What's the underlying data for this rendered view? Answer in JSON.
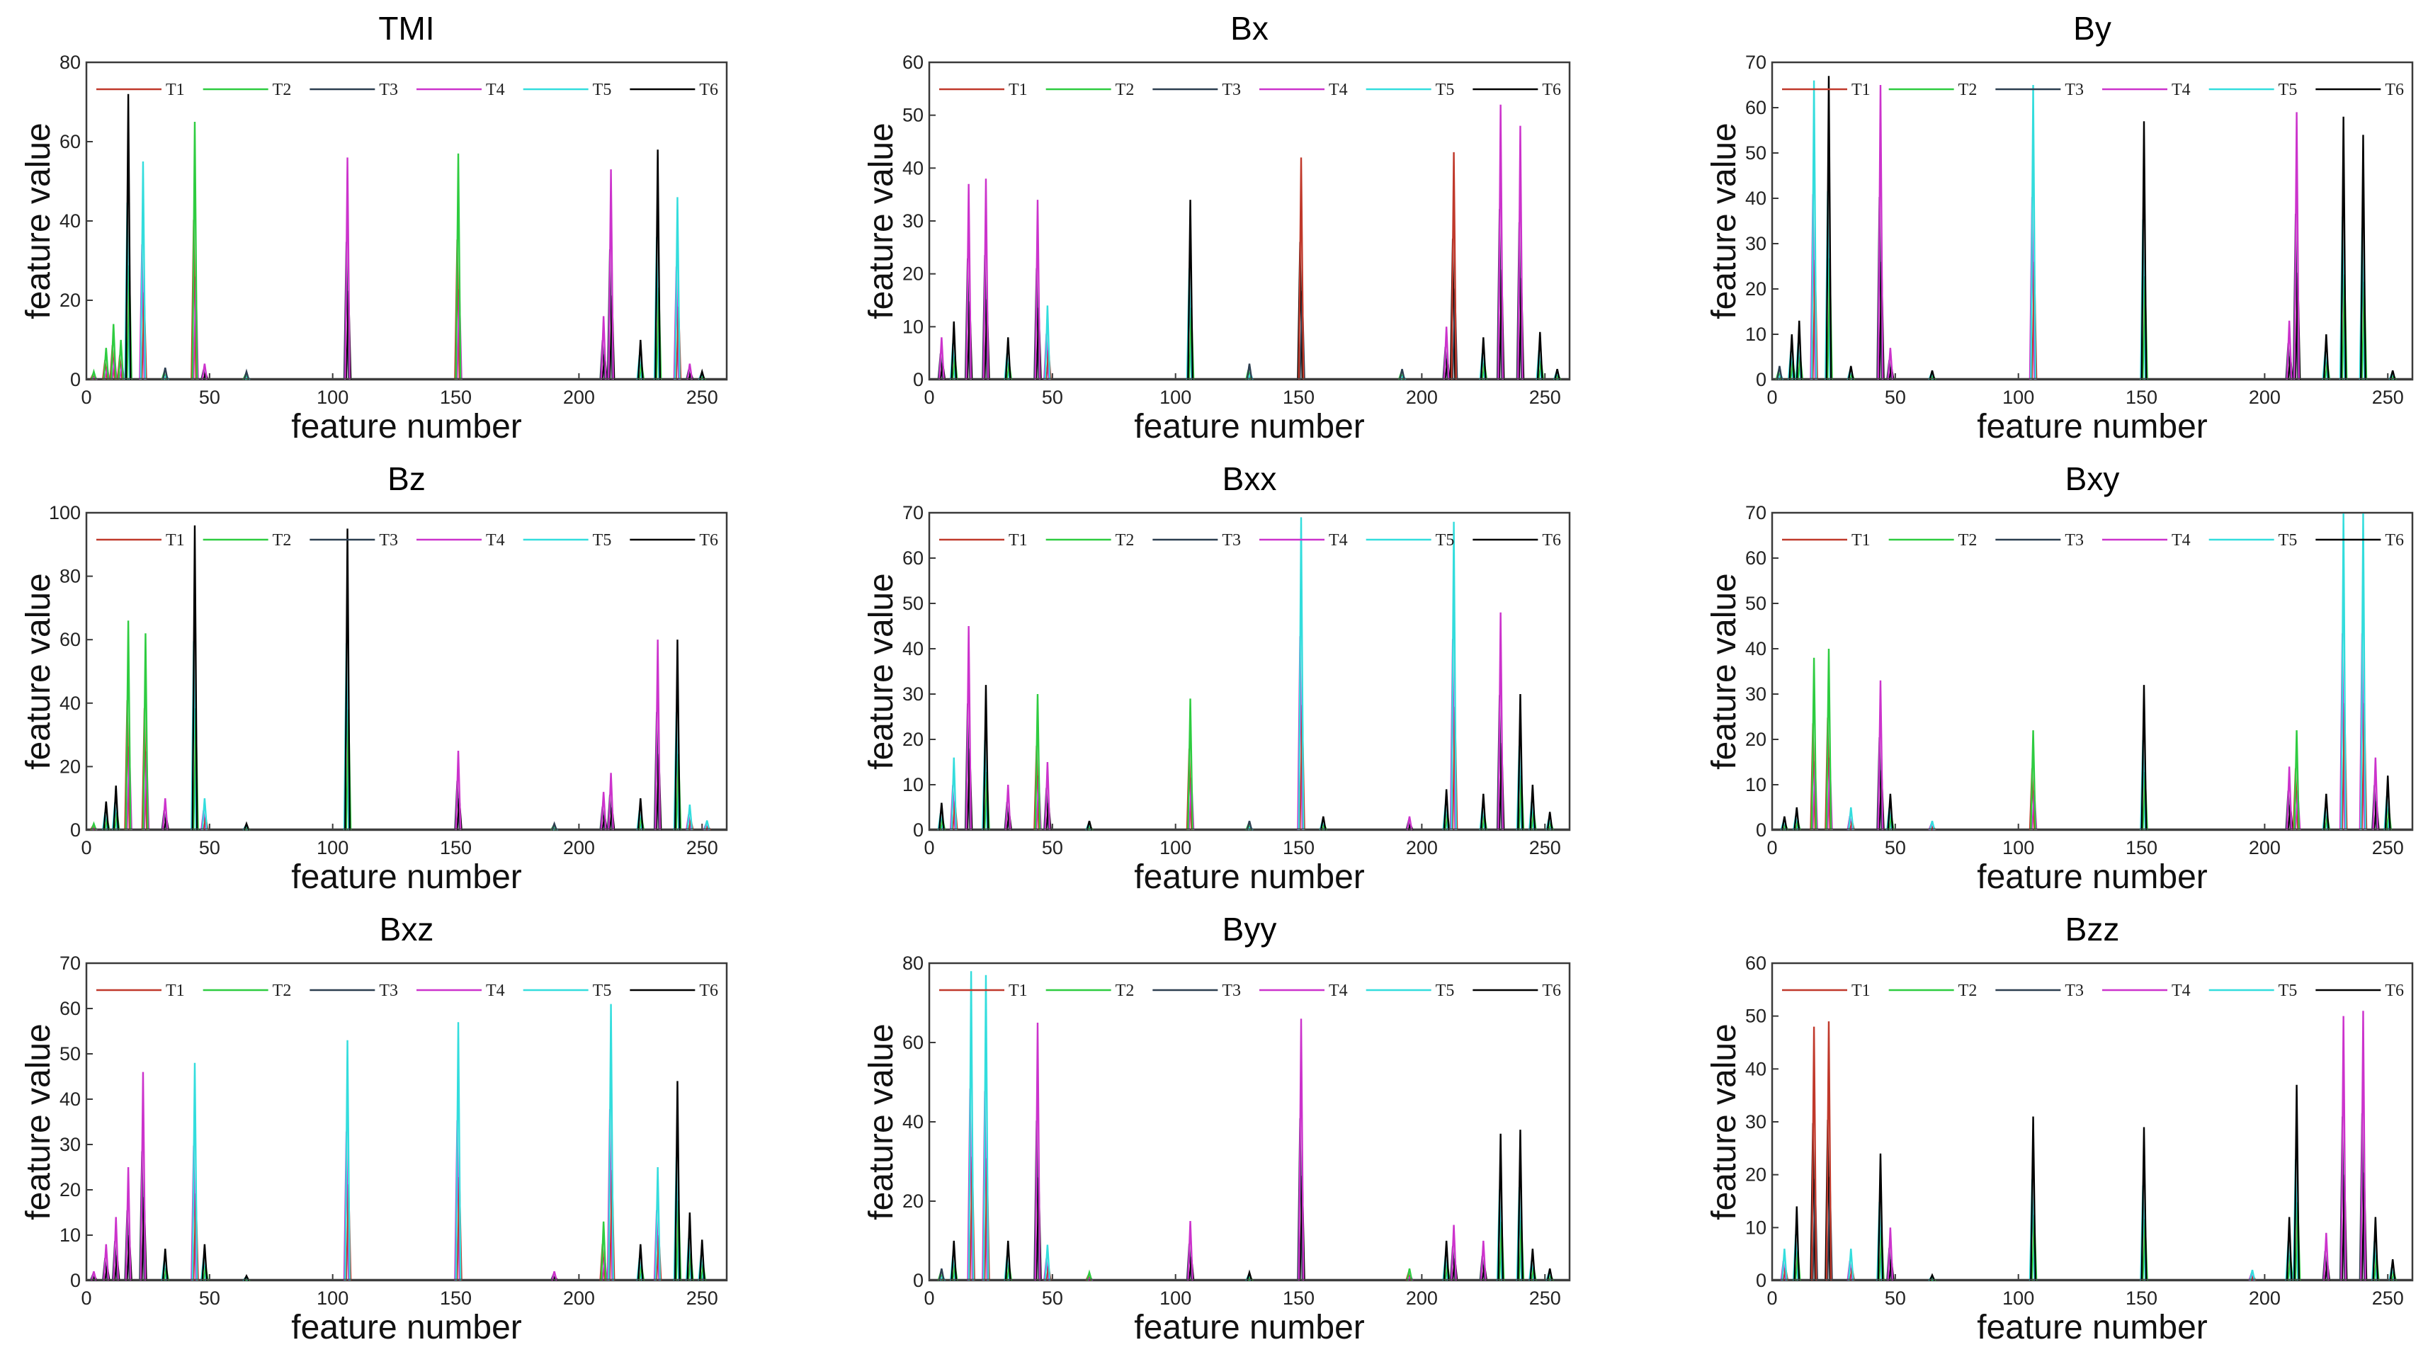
{
  "figure": {
    "legend_labels": [
      "T1",
      "T2",
      "T3",
      "T4",
      "T5",
      "T6"
    ],
    "series_colors": [
      "#c0392b",
      "#2ecc40",
      "#2c3e50",
      "#cc33cc",
      "#33dddd",
      "#000000"
    ]
  },
  "chart_data": [
    {
      "type": "line",
      "title": "TMI",
      "xlabel": "feature number",
      "ylabel": "feature value",
      "xlim": [
        0,
        260
      ],
      "ylim": [
        0,
        80
      ],
      "xticks": [
        0,
        50,
        100,
        150,
        200,
        250
      ],
      "yticks": [
        0,
        20,
        40,
        60,
        80
      ],
      "legend": "top",
      "peaks": [
        [
          3,
          2,
          1
        ],
        [
          8,
          8,
          1
        ],
        [
          11,
          14,
          1
        ],
        [
          14,
          10,
          1
        ],
        [
          17,
          72,
          5
        ],
        [
          23,
          55,
          4
        ],
        [
          32,
          3,
          2
        ],
        [
          44,
          65,
          1
        ],
        [
          48,
          4,
          3
        ],
        [
          65,
          2,
          2
        ],
        [
          106,
          56,
          3
        ],
        [
          151,
          57,
          1
        ],
        [
          210,
          16,
          3
        ],
        [
          213,
          53,
          3
        ],
        [
          225,
          10,
          5
        ],
        [
          232,
          58,
          5
        ],
        [
          240,
          46,
          4
        ],
        [
          245,
          4,
          3
        ],
        [
          250,
          2,
          5
        ]
      ]
    },
    {
      "type": "line",
      "title": "Bx",
      "xlabel": "feature number",
      "ylabel": "feature value",
      "xlim": [
        0,
        260
      ],
      "ylim": [
        0,
        60
      ],
      "xticks": [
        0,
        50,
        100,
        150,
        200,
        250
      ],
      "yticks": [
        0,
        10,
        20,
        30,
        40,
        50,
        60
      ],
      "legend": "top",
      "peaks": [
        [
          5,
          8,
          3
        ],
        [
          10,
          11,
          5
        ],
        [
          16,
          37,
          3
        ],
        [
          23,
          38,
          3
        ],
        [
          32,
          8,
          5
        ],
        [
          44,
          34,
          3
        ],
        [
          48,
          14,
          4
        ],
        [
          106,
          34,
          5
        ],
        [
          130,
          3,
          2
        ],
        [
          151,
          42,
          0
        ],
        [
          192,
          2,
          2
        ],
        [
          210,
          10,
          3
        ],
        [
          213,
          43,
          0
        ],
        [
          225,
          8,
          5
        ],
        [
          232,
          52,
          3
        ],
        [
          240,
          48,
          3
        ],
        [
          248,
          9,
          5
        ],
        [
          255,
          2,
          5
        ]
      ]
    },
    {
      "type": "line",
      "title": "By",
      "xlabel": "feature number",
      "ylabel": "feature value",
      "xlim": [
        0,
        260
      ],
      "ylim": [
        0,
        70
      ],
      "xticks": [
        0,
        50,
        100,
        150,
        200,
        250
      ],
      "yticks": [
        0,
        10,
        20,
        30,
        40,
        50,
        60,
        70
      ],
      "legend": "top",
      "peaks": [
        [
          3,
          3,
          2
        ],
        [
          8,
          10,
          5
        ],
        [
          11,
          13,
          5
        ],
        [
          17,
          66,
          4
        ],
        [
          23,
          67,
          5
        ],
        [
          32,
          3,
          5
        ],
        [
          44,
          65,
          3
        ],
        [
          48,
          7,
          3
        ],
        [
          65,
          2,
          5
        ],
        [
          106,
          65,
          4
        ],
        [
          151,
          57,
          5
        ],
        [
          210,
          13,
          3
        ],
        [
          213,
          59,
          3
        ],
        [
          225,
          10,
          5
        ],
        [
          232,
          58,
          5
        ],
        [
          240,
          54,
          5
        ],
        [
          252,
          2,
          5
        ]
      ]
    },
    {
      "type": "line",
      "title": "Bz",
      "xlabel": "feature number",
      "ylabel": "feature value",
      "xlim": [
        0,
        260
      ],
      "ylim": [
        0,
        100
      ],
      "xticks": [
        0,
        50,
        100,
        150,
        200,
        250
      ],
      "yticks": [
        0,
        20,
        40,
        60,
        80,
        100
      ],
      "legend": "top",
      "peaks": [
        [
          3,
          2,
          1
        ],
        [
          8,
          9,
          5
        ],
        [
          12,
          14,
          5
        ],
        [
          17,
          66,
          1
        ],
        [
          24,
          62,
          1
        ],
        [
          32,
          10,
          3
        ],
        [
          44,
          96,
          5
        ],
        [
          48,
          10,
          4
        ],
        [
          65,
          2,
          5
        ],
        [
          106,
          95,
          5
        ],
        [
          151,
          25,
          3
        ],
        [
          190,
          2,
          2
        ],
        [
          210,
          12,
          3
        ],
        [
          213,
          18,
          3
        ],
        [
          225,
          10,
          5
        ],
        [
          232,
          60,
          3
        ],
        [
          240,
          60,
          5
        ],
        [
          245,
          8,
          4
        ],
        [
          252,
          3,
          4
        ]
      ]
    },
    {
      "type": "line",
      "title": "Bxx",
      "xlabel": "feature number",
      "ylabel": "feature value",
      "xlim": [
        0,
        260
      ],
      "ylim": [
        0,
        70
      ],
      "xticks": [
        0,
        50,
        100,
        150,
        200,
        250
      ],
      "yticks": [
        0,
        10,
        20,
        30,
        40,
        50,
        60,
        70
      ],
      "legend": "top",
      "peaks": [
        [
          5,
          6,
          5
        ],
        [
          10,
          16,
          4
        ],
        [
          16,
          45,
          3
        ],
        [
          23,
          32,
          5
        ],
        [
          32,
          10,
          3
        ],
        [
          44,
          30,
          1
        ],
        [
          48,
          15,
          3
        ],
        [
          65,
          2,
          5
        ],
        [
          106,
          29,
          1
        ],
        [
          130,
          2,
          2
        ],
        [
          151,
          69,
          4
        ],
        [
          160,
          3,
          5
        ],
        [
          195,
          3,
          3
        ],
        [
          210,
          9,
          5
        ],
        [
          213,
          68,
          4
        ],
        [
          225,
          8,
          5
        ],
        [
          232,
          48,
          3
        ],
        [
          240,
          30,
          5
        ],
        [
          245,
          10,
          5
        ],
        [
          252,
          4,
          5
        ]
      ]
    },
    {
      "type": "line",
      "title": "Bxy",
      "xlabel": "feature number",
      "ylabel": "feature value",
      "xlim": [
        0,
        260
      ],
      "ylim": [
        0,
        70
      ],
      "xticks": [
        0,
        50,
        100,
        150,
        200,
        250
      ],
      "yticks": [
        0,
        10,
        20,
        30,
        40,
        50,
        60,
        70
      ],
      "legend": "top",
      "peaks": [
        [
          5,
          3,
          5
        ],
        [
          10,
          5,
          5
        ],
        [
          17,
          38,
          1
        ],
        [
          23,
          40,
          1
        ],
        [
          32,
          5,
          4
        ],
        [
          44,
          33,
          3
        ],
        [
          48,
          8,
          5
        ],
        [
          65,
          2,
          4
        ],
        [
          106,
          22,
          1
        ],
        [
          151,
          32,
          5
        ],
        [
          210,
          14,
          3
        ],
        [
          213,
          22,
          1
        ],
        [
          225,
          8,
          5
        ],
        [
          232,
          70,
          4
        ],
        [
          240,
          70,
          4
        ],
        [
          245,
          16,
          3
        ],
        [
          250,
          12,
          5
        ]
      ]
    },
    {
      "type": "line",
      "title": "Bxz",
      "xlabel": "feature number",
      "ylabel": "feature value",
      "xlim": [
        0,
        260
      ],
      "ylim": [
        0,
        70
      ],
      "xticks": [
        0,
        50,
        100,
        150,
        200,
        250
      ],
      "yticks": [
        0,
        10,
        20,
        30,
        40,
        50,
        60,
        70
      ],
      "legend": "top",
      "peaks": [
        [
          3,
          2,
          3
        ],
        [
          8,
          8,
          3
        ],
        [
          12,
          14,
          3
        ],
        [
          17,
          25,
          3
        ],
        [
          23,
          46,
          3
        ],
        [
          32,
          7,
          5
        ],
        [
          44,
          48,
          4
        ],
        [
          48,
          8,
          5
        ],
        [
          65,
          1,
          5
        ],
        [
          106,
          53,
          4
        ],
        [
          151,
          57,
          4
        ],
        [
          190,
          2,
          3
        ],
        [
          210,
          13,
          1
        ],
        [
          213,
          61,
          4
        ],
        [
          225,
          8,
          5
        ],
        [
          232,
          25,
          4
        ],
        [
          240,
          44,
          5
        ],
        [
          245,
          15,
          5
        ],
        [
          250,
          9,
          5
        ]
      ]
    },
    {
      "type": "line",
      "title": "Byy",
      "xlabel": "feature number",
      "ylabel": "feature value",
      "xlim": [
        0,
        260
      ],
      "ylim": [
        0,
        80
      ],
      "xticks": [
        0,
        50,
        100,
        150,
        200,
        250
      ],
      "yticks": [
        0,
        20,
        40,
        60,
        80
      ],
      "legend": "top",
      "peaks": [
        [
          5,
          3,
          2
        ],
        [
          10,
          10,
          5
        ],
        [
          17,
          78,
          4
        ],
        [
          23,
          77,
          4
        ],
        [
          32,
          10,
          5
        ],
        [
          44,
          65,
          3
        ],
        [
          48,
          9,
          4
        ],
        [
          65,
          2,
          1
        ],
        [
          106,
          15,
          3
        ],
        [
          130,
          2,
          5
        ],
        [
          151,
          66,
          3
        ],
        [
          195,
          3,
          1
        ],
        [
          210,
          10,
          5
        ],
        [
          213,
          14,
          3
        ],
        [
          225,
          10,
          3
        ],
        [
          232,
          37,
          5
        ],
        [
          240,
          38,
          5
        ],
        [
          245,
          8,
          5
        ],
        [
          252,
          3,
          5
        ]
      ]
    },
    {
      "type": "line",
      "title": "Bzz",
      "xlabel": "feature number",
      "ylabel": "feature value",
      "xlim": [
        0,
        260
      ],
      "ylim": [
        0,
        60
      ],
      "xticks": [
        0,
        50,
        100,
        150,
        200,
        250
      ],
      "yticks": [
        0,
        10,
        20,
        30,
        40,
        50,
        60
      ],
      "legend": "top",
      "peaks": [
        [
          5,
          6,
          4
        ],
        [
          10,
          14,
          5
        ],
        [
          17,
          48,
          0
        ],
        [
          23,
          49,
          0
        ],
        [
          32,
          6,
          4
        ],
        [
          44,
          24,
          5
        ],
        [
          48,
          10,
          3
        ],
        [
          65,
          1,
          5
        ],
        [
          106,
          31,
          5
        ],
        [
          151,
          29,
          5
        ],
        [
          195,
          2,
          4
        ],
        [
          210,
          12,
          5
        ],
        [
          213,
          37,
          5
        ],
        [
          225,
          9,
          3
        ],
        [
          232,
          50,
          3
        ],
        [
          240,
          51,
          3
        ],
        [
          245,
          12,
          5
        ],
        [
          252,
          4,
          5
        ]
      ]
    }
  ]
}
